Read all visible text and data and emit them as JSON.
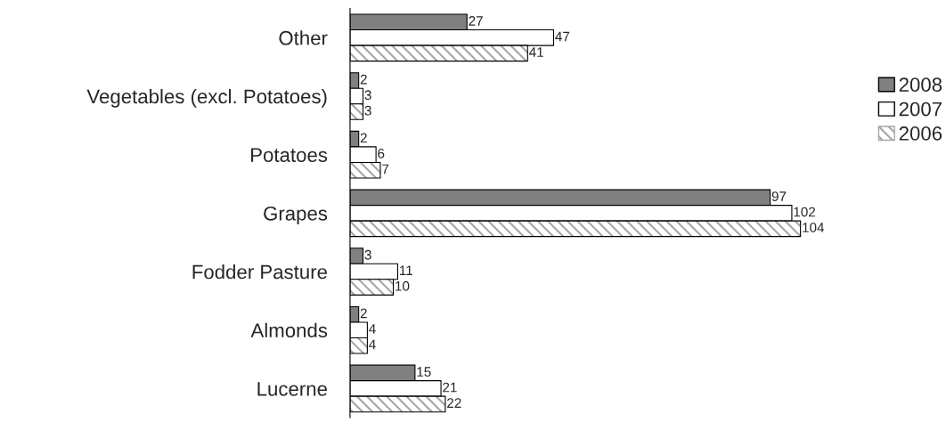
{
  "chart_data": {
    "type": "bar",
    "orientation": "horizontal",
    "categories": [
      "Other",
      "Vegetables (excl. Potatoes)",
      "Potatoes",
      "Grapes",
      "Fodder Pasture",
      "Almonds",
      "Lucerne"
    ],
    "series": [
      {
        "name": "2008",
        "color": "#808080",
        "values": [
          27,
          2,
          2,
          97,
          3,
          2,
          15
        ]
      },
      {
        "name": "2007",
        "color": "#ffffff",
        "values": [
          47,
          3,
          6,
          102,
          11,
          4,
          21
        ]
      },
      {
        "name": "2006",
        "color": "#a6a6a6",
        "values": [
          41,
          3,
          7,
          104,
          10,
          4,
          22
        ]
      }
    ],
    "data_labels": true,
    "legend": "right",
    "grid": false,
    "tick_labels": "y"
  }
}
